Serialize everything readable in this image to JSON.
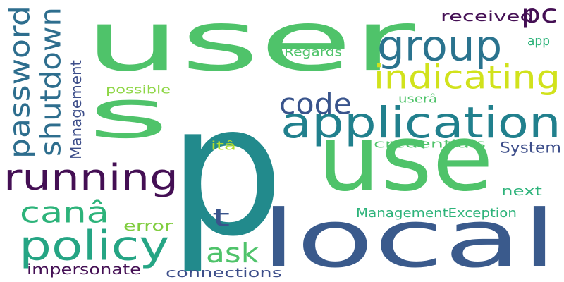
{
  "words": [
    {
      "text": "p",
      "color": "#228a8c",
      "rotated": false
    },
    {
      "text": "user",
      "color": "#4fc36a",
      "rotated": false
    },
    {
      "text": "local",
      "color": "#3a5a8c",
      "rotated": false
    },
    {
      "text": "use",
      "color": "#4fc36a",
      "rotated": false
    },
    {
      "text": "s",
      "color": "#4fc36a",
      "rotated": false
    },
    {
      "text": "application",
      "color": "#21808d",
      "rotated": false
    },
    {
      "text": "running",
      "color": "#440f54",
      "rotated": false
    },
    {
      "text": "group",
      "color": "#2a738e",
      "rotated": false
    },
    {
      "text": "policy",
      "color": "#25a584",
      "rotated": false
    },
    {
      "text": "indicating",
      "color": "#d1e21c",
      "rotated": false
    },
    {
      "text": "password",
      "color": "#2e6e8e",
      "rotated": true
    },
    {
      "text": "shutdown",
      "color": "#2e6e8e",
      "rotated": true
    },
    {
      "text": "code",
      "color": "#39548c",
      "rotated": false
    },
    {
      "text": "canâ",
      "color": "#2db37a",
      "rotated": false
    },
    {
      "text": "ask",
      "color": "#4fc36a",
      "rotated": false
    },
    {
      "text": "pc",
      "color": "#440f54",
      "rotated": false
    },
    {
      "text": "t",
      "color": "#39548c",
      "rotated": false
    },
    {
      "text": "System",
      "color": "#3d4e8a",
      "rotated": false
    },
    {
      "text": "impersonate",
      "color": "#440f54",
      "rotated": false
    },
    {
      "text": "Management",
      "color": "#3d4e8a",
      "rotated": true
    },
    {
      "text": "received",
      "color": "#440f54",
      "rotated": false
    },
    {
      "text": "error",
      "color": "#80cd3f",
      "rotated": false
    },
    {
      "text": "next",
      "color": "#2db37a",
      "rotated": false
    },
    {
      "text": "app",
      "color": "#2db37a",
      "rotated": false
    },
    {
      "text": "ManagementException",
      "color": "#2db37a",
      "rotated": false
    },
    {
      "text": "connections",
      "color": "#3d4e8a",
      "rotated": false
    },
    {
      "text": "Regards",
      "color": "#4fc36a",
      "rotated": false
    },
    {
      "text": "possible",
      "color": "#8ed645",
      "rotated": false
    },
    {
      "text": "credentials",
      "color": "#4fc36a",
      "rotated": false
    },
    {
      "text": "userâ",
      "color": "#4fc36a",
      "rotated": false
    },
    {
      "text": "itâ",
      "color": "#b2dd2d",
      "rotated": false
    }
  ]
}
